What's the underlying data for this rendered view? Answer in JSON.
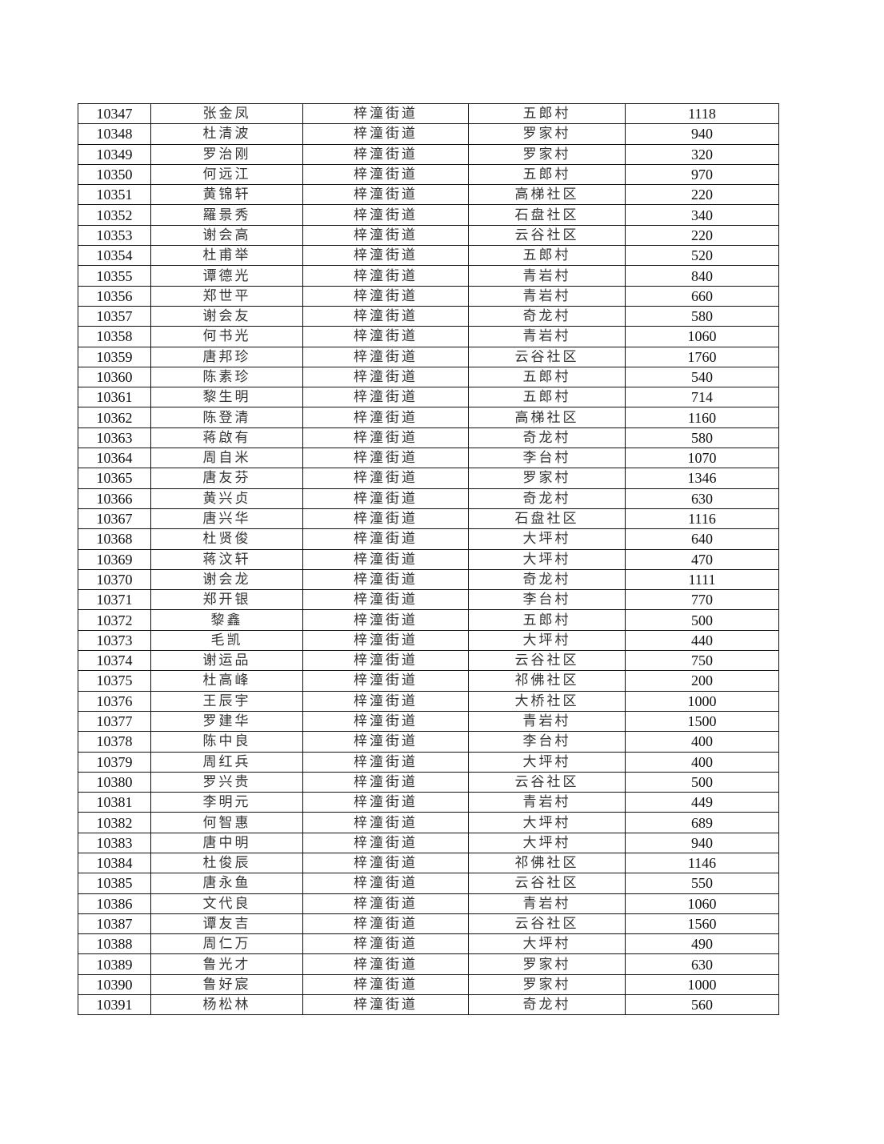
{
  "rows": [
    [
      "10347",
      "张金凤",
      "梓潼街道",
      "五郎村",
      "1118"
    ],
    [
      "10348",
      "杜清波",
      "梓潼街道",
      "罗家村",
      "940"
    ],
    [
      "10349",
      "罗治刚",
      "梓潼街道",
      "罗家村",
      "320"
    ],
    [
      "10350",
      "何远江",
      "梓潼街道",
      "五郎村",
      "970"
    ],
    [
      "10351",
      "黄锦轩",
      "梓潼街道",
      "高梯社区",
      "220"
    ],
    [
      "10352",
      "羅景秀",
      "梓潼街道",
      "石盘社区",
      "340"
    ],
    [
      "10353",
      "谢会高",
      "梓潼街道",
      "云谷社区",
      "220"
    ],
    [
      "10354",
      "杜甫举",
      "梓潼街道",
      "五郎村",
      "520"
    ],
    [
      "10355",
      "谭德光",
      "梓潼街道",
      "青岩村",
      "840"
    ],
    [
      "10356",
      "郑世平",
      "梓潼街道",
      "青岩村",
      "660"
    ],
    [
      "10357",
      "谢会友",
      "梓潼街道",
      "奇龙村",
      "580"
    ],
    [
      "10358",
      "何书光",
      "梓潼街道",
      "青岩村",
      "1060"
    ],
    [
      "10359",
      "唐邦珍",
      "梓潼街道",
      "云谷社区",
      "1760"
    ],
    [
      "10360",
      "陈素珍",
      "梓潼街道",
      "五郎村",
      "540"
    ],
    [
      "10361",
      "黎生明",
      "梓潼街道",
      "五郎村",
      "714"
    ],
    [
      "10362",
      "陈登清",
      "梓潼街道",
      "高梯社区",
      "1160"
    ],
    [
      "10363",
      "蒋啟有",
      "梓潼街道",
      "奇龙村",
      "580"
    ],
    [
      "10364",
      "周自米",
      "梓潼街道",
      "李台村",
      "1070"
    ],
    [
      "10365",
      "唐友芬",
      "梓潼街道",
      "罗家村",
      "1346"
    ],
    [
      "10366",
      "黄兴贞",
      "梓潼街道",
      "奇龙村",
      "630"
    ],
    [
      "10367",
      "唐兴华",
      "梓潼街道",
      "石盘社区",
      "1116"
    ],
    [
      "10368",
      "杜贤俊",
      "梓潼街道",
      "大坪村",
      "640"
    ],
    [
      "10369",
      "蒋汶轩",
      "梓潼街道",
      "大坪村",
      "470"
    ],
    [
      "10370",
      "谢会龙",
      "梓潼街道",
      "奇龙村",
      "1111"
    ],
    [
      "10371",
      "郑开银",
      "梓潼街道",
      "李台村",
      "770"
    ],
    [
      "10372",
      "黎鑫",
      "梓潼街道",
      "五郎村",
      "500"
    ],
    [
      "10373",
      "毛凯",
      "梓潼街道",
      "大坪村",
      "440"
    ],
    [
      "10374",
      "谢运品",
      "梓潼街道",
      "云谷社区",
      "750"
    ],
    [
      "10375",
      "杜高峰",
      "梓潼街道",
      "祁佛社区",
      "200"
    ],
    [
      "10376",
      "王辰宇",
      "梓潼街道",
      "大桥社区",
      "1000"
    ],
    [
      "10377",
      "罗建华",
      "梓潼街道",
      "青岩村",
      "1500"
    ],
    [
      "10378",
      "陈中良",
      "梓潼街道",
      "李台村",
      "400"
    ],
    [
      "10379",
      "周红兵",
      "梓潼街道",
      "大坪村",
      "400"
    ],
    [
      "10380",
      "罗兴贵",
      "梓潼街道",
      "云谷社区",
      "500"
    ],
    [
      "10381",
      "李明元",
      "梓潼街道",
      "青岩村",
      "449"
    ],
    [
      "10382",
      "何智惠",
      "梓潼街道",
      "大坪村",
      "689"
    ],
    [
      "10383",
      "唐中明",
      "梓潼街道",
      "大坪村",
      "940"
    ],
    [
      "10384",
      "杜俊辰",
      "梓潼街道",
      "祁佛社区",
      "1146"
    ],
    [
      "10385",
      "唐永鱼",
      "梓潼街道",
      "云谷社区",
      "550"
    ],
    [
      "10386",
      "文代良",
      "梓潼街道",
      "青岩村",
      "1060"
    ],
    [
      "10387",
      "谭友吉",
      "梓潼街道",
      "云谷社区",
      "1560"
    ],
    [
      "10388",
      "周仁万",
      "梓潼街道",
      "大坪村",
      "490"
    ],
    [
      "10389",
      "鲁光才",
      "梓潼街道",
      "罗家村",
      "630"
    ],
    [
      "10390",
      "鲁好宸",
      "梓潼街道",
      "罗家村",
      "1000"
    ],
    [
      "10391",
      "杨松林",
      "梓潼街道",
      "奇龙村",
      "560"
    ]
  ]
}
